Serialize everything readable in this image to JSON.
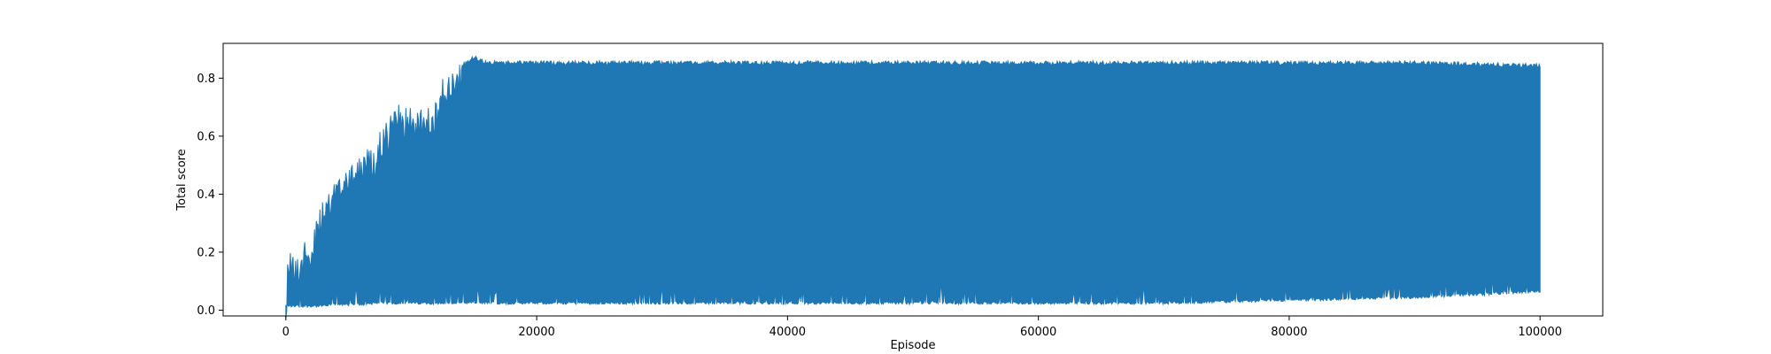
{
  "chart_data": {
    "type": "line",
    "title": "",
    "xlabel": "Episode",
    "ylabel": "Total score",
    "xlim": [
      -5000,
      105000
    ],
    "ylim": [
      -0.02,
      0.92
    ],
    "xticks": [
      0,
      20000,
      40000,
      60000,
      80000,
      100000
    ],
    "xtick_labels": [
      "0",
      "20000",
      "40000",
      "60000",
      "80000",
      "100000"
    ],
    "yticks": [
      0.0,
      0.2,
      0.4,
      0.6,
      0.8
    ],
    "ytick_labels": [
      "0.0",
      "0.2",
      "0.4",
      "0.6",
      "0.8"
    ],
    "grid": false,
    "series": [
      {
        "name": "Total score",
        "color": "#1f77b4",
        "envelope": {
          "x": [
            0,
            200,
            500,
            1000,
            2000,
            3000,
            4000,
            5000,
            6000,
            7000,
            8000,
            9000,
            10000,
            11000,
            12000,
            12500,
            13000,
            14000,
            15000,
            16000,
            20000,
            30000,
            40000,
            50000,
            60000,
            70000,
            80000,
            90000,
            100000
          ],
          "upper": [
            0.05,
            0.23,
            0.22,
            0.2,
            0.27,
            0.38,
            0.46,
            0.53,
            0.55,
            0.57,
            0.66,
            0.71,
            0.7,
            0.69,
            0.72,
            0.8,
            0.83,
            0.85,
            0.88,
            0.86,
            0.86,
            0.86,
            0.86,
            0.86,
            0.86,
            0.86,
            0.86,
            0.86,
            0.85
          ],
          "lower": [
            0.01,
            0.01,
            0.01,
            0.01,
            0.01,
            0.01,
            0.015,
            0.015,
            0.015,
            0.02,
            0.02,
            0.02,
            0.02,
            0.02,
            0.02,
            0.02,
            0.02,
            0.02,
            0.02,
            0.02,
            0.02,
            0.02,
            0.02,
            0.02,
            0.02,
            0.02,
            0.03,
            0.04,
            0.06
          ]
        }
      }
    ]
  }
}
